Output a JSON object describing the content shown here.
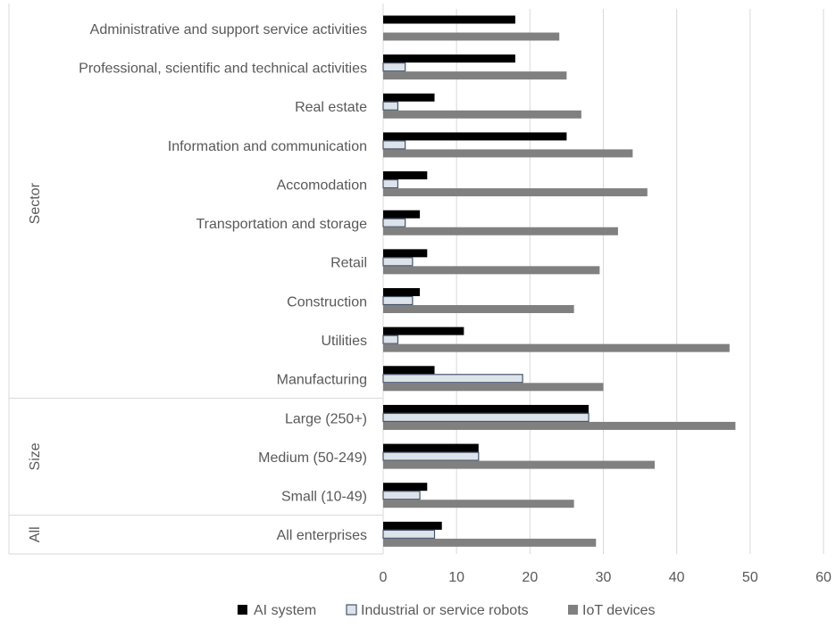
{
  "chart_data": {
    "type": "bar",
    "orientation": "horizontal",
    "groups": [
      {
        "label": "Sector",
        "categories": [
          "Administrative and support service activities",
          "Professional, scientific and technical activities",
          "Real estate",
          "Information and communication",
          "Accomodation",
          "Transportation and storage",
          "Retail",
          "Construction",
          "Utilities",
          "Manufacturing"
        ]
      },
      {
        "label": "Size",
        "categories": [
          "Large (250+)",
          "Medium (50-249)",
          "Small  (10-49)"
        ]
      },
      {
        "label": "All",
        "categories": [
          "All enterprises"
        ]
      }
    ],
    "categories": [
      "Administrative and support service activities",
      "Professional, scientific and technical activities",
      "Real estate",
      "Information and communication",
      "Accomodation",
      "Transportation and storage",
      "Retail",
      "Construction",
      "Utilities",
      "Manufacturing",
      "Large (250+)",
      "Medium (50-249)",
      "Small  (10-49)",
      "All enterprises"
    ],
    "series": [
      {
        "name": "AI system",
        "color": "#000000",
        "values": [
          18,
          18,
          7,
          25,
          6,
          5,
          6,
          5,
          11,
          7,
          28,
          13,
          6,
          8
        ]
      },
      {
        "name": "Industrial or service robots",
        "color": "#dde3ea",
        "values": [
          0,
          3,
          2,
          3,
          2,
          3,
          4,
          4,
          2,
          19,
          28,
          13,
          5,
          7
        ]
      },
      {
        "name": "IoT devices",
        "color": "#808080",
        "values": [
          24,
          25,
          27,
          34,
          36,
          32,
          29.5,
          26,
          47.2,
          30,
          48,
          37,
          26,
          29
        ]
      }
    ],
    "xlim": [
      0,
      60
    ],
    "xticks": [
      "0",
      "10",
      "20",
      "30",
      "40",
      "50",
      "60"
    ],
    "grid": true,
    "legend_position": "bottom"
  }
}
